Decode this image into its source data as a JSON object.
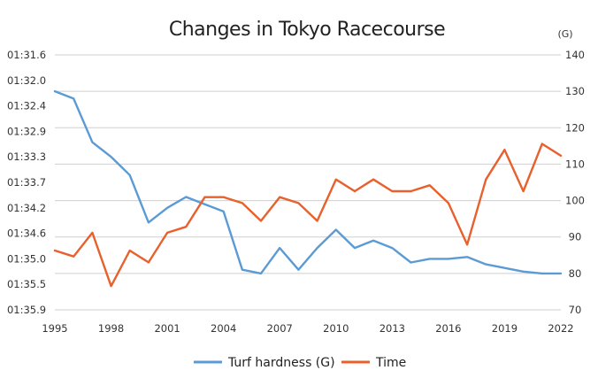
{
  "chart_data": {
    "type": "line",
    "title": "Changes in Tokyo Racecourse",
    "right_axis_unit": "(G)",
    "x": [
      1995,
      1996,
      1997,
      1998,
      1999,
      2000,
      2001,
      2002,
      2003,
      2004,
      2005,
      2006,
      2007,
      2008,
      2009,
      2010,
      2011,
      2012,
      2013,
      2014,
      2015,
      2016,
      2017,
      2018,
      2019,
      2020,
      2021,
      2022
    ],
    "x_tick_labels": [
      "1995",
      "1998",
      "2001",
      "2004",
      "2007",
      "2010",
      "2013",
      "2016",
      "2019",
      "2022"
    ],
    "left_axis": {
      "tick_labels": [
        "01:31.6",
        "01:32.0",
        "01:32.4",
        "01:32.9",
        "01:33.3",
        "01:33.7",
        "01:34.2",
        "01:34.6",
        "01:35.0",
        "01:35.5",
        "01:35.9"
      ],
      "ylim": [
        "01:31.6",
        "01:35.9"
      ]
    },
    "right_axis": {
      "tick_labels": [
        "140",
        "130",
        "120",
        "110",
        "100",
        "90",
        "80",
        "70"
      ],
      "ylim": [
        70,
        140
      ]
    },
    "series": [
      {
        "name": "Turf hardness (G)",
        "axis": "right",
        "color": "#5b9bd5",
        "values": [
          130,
          128,
          116,
          112,
          107,
          94,
          98,
          101,
          99,
          97,
          81,
          80,
          87,
          81,
          87,
          92,
          87,
          89,
          87,
          83,
          84,
          84,
          84.5,
          82.5,
          81.5,
          80.5,
          80,
          80
        ]
      },
      {
        "name": "Time",
        "axis": "left",
        "color": "#e8602c",
        "values": [
          "01:34.9",
          "01:35.0",
          "01:34.6",
          "01:35.5",
          "01:34.9",
          "01:35.1",
          "01:34.6",
          "01:34.5",
          "01:34.0",
          "01:34.0",
          "01:34.1",
          "01:34.4",
          "01:34.0",
          "01:34.1",
          "01:34.4",
          "01:33.7",
          "01:33.9",
          "01:33.7",
          "01:33.9",
          "01:33.9",
          "01:33.8",
          "01:34.1",
          "01:34.8",
          "01:33.7",
          "01:33.2",
          "01:33.9",
          "01:33.1",
          "01:33.3"
        ]
      }
    ],
    "grid": true,
    "legend": "bottom-center"
  }
}
